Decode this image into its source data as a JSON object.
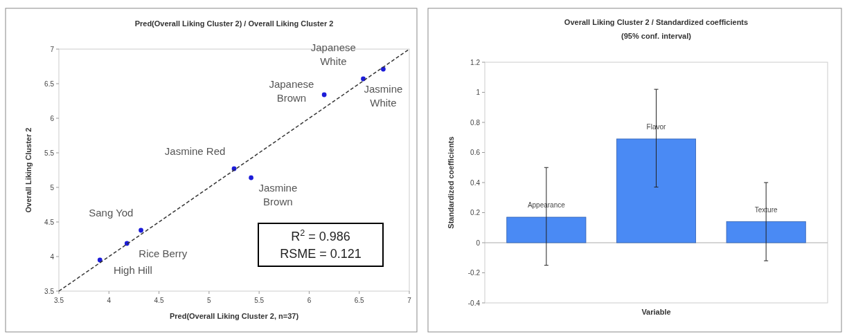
{
  "chart_data": [
    {
      "type": "scatter",
      "title": "Pred(Overall Liking Cluster 2) / Overall Liking Cluster 2",
      "xlabel": "Pred(Overall Liking Cluster 2, n=37)",
      "ylabel": "Overall Liking Cluster 2",
      "xlim": [
        3.5,
        7
      ],
      "ylim": [
        3.5,
        7
      ],
      "xticks": [
        3.5,
        4,
        4.5,
        5,
        5.5,
        6,
        6.5,
        7
      ],
      "yticks": [
        3.5,
        4,
        4.5,
        5,
        5.5,
        6,
        6.5,
        7
      ],
      "series": [
        {
          "type": "scatter",
          "color": "#1c1cd8",
          "marker": "circle",
          "x": [
            3.91,
            4.18,
            4.32,
            5.25,
            5.42,
            6.15,
            6.54,
            6.74
          ],
          "values": [
            3.95,
            4.19,
            4.38,
            5.27,
            5.14,
            6.34,
            6.57,
            6.71
          ]
        },
        {
          "type": "line",
          "color": "#333333",
          "line_style": "dashed",
          "x": [
            3.5,
            7
          ],
          "values": [
            3.5,
            7
          ]
        }
      ],
      "annotations": [
        {
          "text": "Japanese\nWhite",
          "x": 6.54,
          "y": 6.57
        },
        {
          "text": "Japanese\nBrown",
          "x": 6.15,
          "y": 6.34
        },
        {
          "text": "Jasmine\nWhite",
          "x": 6.74,
          "y": 6.71
        },
        {
          "text": "Jasmine Red",
          "x": 5.25,
          "y": 5.27
        },
        {
          "text": "Jasmine\nBrown",
          "x": 5.42,
          "y": 5.14
        },
        {
          "text": "Sang Yod",
          "x": 4.32,
          "y": 4.38
        },
        {
          "text": "Rice Berry",
          "x": 4.18,
          "y": 4.19
        },
        {
          "text": "High Hill",
          "x": 3.91,
          "y": 3.95
        },
        "R$^{2}$ = 0.986",
        "RSME = 0.121"
      ]
    },
    {
      "type": "bar",
      "title": "Overall Liking Cluster 2 / Standardized coefficients\n(95% conf. interval)",
      "xlabel": "Variable",
      "ylabel": "Standardized coefficients",
      "categories": [
        "Appearance",
        "Flavor",
        "Texture"
      ],
      "values": [
        0.17,
        0.69,
        0.14
      ],
      "color": "#4a8af4",
      "errors": [
        [
          -0.15,
          0.5
        ],
        [
          0.37,
          1.02
        ],
        [
          -0.12,
          0.4
        ]
      ],
      "ylim": [
        -0.4,
        1.2
      ],
      "yticks": [
        -0.4,
        -0.2,
        0,
        0.2,
        0.4,
        0.6,
        0.8,
        1,
        1.2
      ]
    }
  ]
}
